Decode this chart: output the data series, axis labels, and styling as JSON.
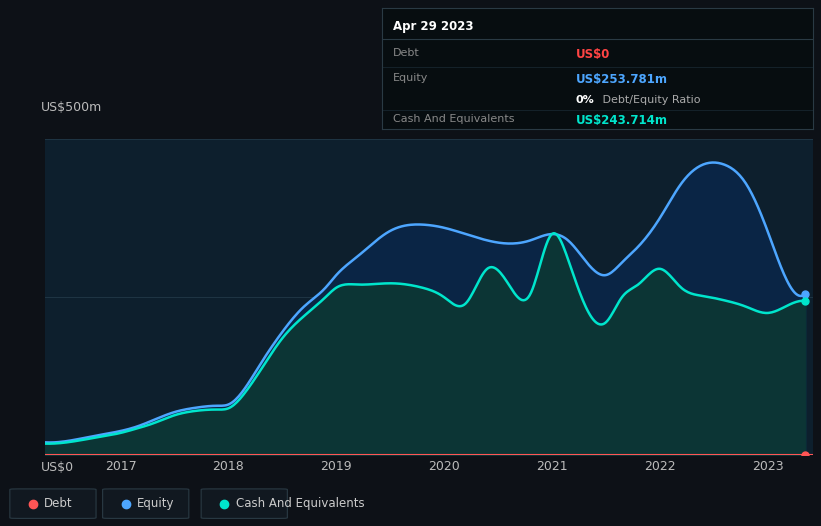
{
  "bg_color": "#0d1117",
  "plot_bg_color": "#0d1f2d",
  "ylabel_text": "US$500m",
  "y0_text": "US$0",
  "grid_color": "#243b4a",
  "title_box": {
    "date": "Apr 29 2023",
    "debt_label": "Debt",
    "debt_value": "US$0",
    "debt_color": "#ff4444",
    "equity_label": "Equity",
    "equity_value": "US$253.781m",
    "equity_color": "#4da6ff",
    "ratio_bold": "0%",
    "ratio_rest": " Debt/Equity Ratio",
    "cash_label": "Cash And Equivalents",
    "cash_value": "US$243.714m",
    "cash_color": "#00e5cc",
    "box_bg": "#070d10",
    "box_border": "#2a3a44"
  },
  "legend": {
    "debt_label": "Debt",
    "debt_color": "#ff5555",
    "equity_label": "Equity",
    "equity_color": "#4da6ff",
    "cash_label": "Cash And Equivalents",
    "cash_color": "#00e5cc"
  },
  "x_ticks": [
    2017,
    2018,
    2019,
    2020,
    2021,
    2022,
    2023
  ],
  "ylim": [
    0,
    500
  ],
  "xlim": [
    2016.3,
    2023.42
  ],
  "equity_x": [
    2016.3,
    2016.5,
    2016.75,
    2017.0,
    2017.15,
    2017.3,
    2017.5,
    2017.7,
    2017.9,
    2018.0,
    2018.15,
    2018.3,
    2018.5,
    2018.7,
    2018.9,
    2019.0,
    2019.2,
    2019.5,
    2019.8,
    2020.0,
    2020.2,
    2020.4,
    2020.6,
    2020.8,
    2021.0,
    2021.15,
    2021.3,
    2021.5,
    2021.65,
    2021.8,
    2022.0,
    2022.2,
    2022.4,
    2022.6,
    2022.8,
    2023.0,
    2023.2,
    2023.35
  ],
  "equity_y": [
    20,
    22,
    30,
    38,
    45,
    55,
    68,
    75,
    78,
    80,
    105,
    145,
    195,
    235,
    265,
    285,
    315,
    355,
    365,
    360,
    350,
    340,
    335,
    340,
    350,
    340,
    310,
    285,
    305,
    330,
    375,
    430,
    460,
    460,
    430,
    355,
    270,
    255
  ],
  "cash_x": [
    2016.3,
    2016.5,
    2016.75,
    2017.0,
    2017.15,
    2017.3,
    2017.5,
    2017.7,
    2017.9,
    2018.0,
    2018.15,
    2018.3,
    2018.5,
    2018.7,
    2018.9,
    2019.0,
    2019.2,
    2019.5,
    2019.8,
    2020.0,
    2020.2,
    2020.4,
    2020.6,
    2020.8,
    2021.0,
    2021.15,
    2021.3,
    2021.5,
    2021.65,
    2021.8,
    2022.0,
    2022.2,
    2022.4,
    2022.6,
    2022.8,
    2023.0,
    2023.2,
    2023.35
  ],
  "cash_y": [
    18,
    20,
    27,
    35,
    42,
    50,
    63,
    70,
    72,
    74,
    98,
    135,
    185,
    220,
    250,
    265,
    270,
    272,
    265,
    250,
    240,
    295,
    270,
    255,
    350,
    310,
    240,
    210,
    250,
    270,
    295,
    265,
    252,
    245,
    235,
    225,
    238,
    244
  ],
  "debt_y": 0,
  "endpoint_x": 2023.35,
  "endpoint_equity_y": 255,
  "endpoint_cash_y": 244,
  "debt_endpoint_x": 2023.35
}
